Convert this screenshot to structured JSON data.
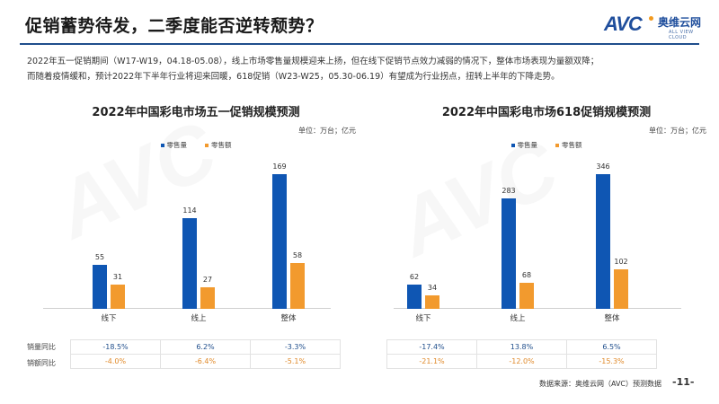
{
  "header": {
    "title": "促销蓄势待发，二季度能否逆转颓势？",
    "logo": {
      "mark": "AVC",
      "name_cn": "奥维云网",
      "name_en": "ALL VIEW CLOUD"
    }
  },
  "intro": {
    "line1": "2022年五一促销期间（W17-W19，04.18-05.08），线上市场零售量规模迎来上扬，但在线下促销节点效力减弱的情况下，整体市场表现为量额双降；",
    "line2": "而随着疫情缓和，预计2022年下半年行业将迎来回暖，618促销（W23-W25，05.30-06.19）有望成为行业拐点，扭转上半年的下降走势。"
  },
  "colors": {
    "volume": "#0f56b3",
    "revenue": "#f29a2e",
    "accent": "#1f4e8c"
  },
  "legend": {
    "volume": "零售量",
    "revenue": "零售额"
  },
  "unit": "单位：万台；亿元",
  "row_labels": {
    "volume_yoy": "销量同比",
    "revenue_yoy": "销额同比"
  },
  "chart_data": [
    {
      "type": "bar",
      "title": "2022年中国彩电市场五一促销规模预测",
      "unit": "单位：万台；亿元",
      "categories": [
        "线下",
        "线上",
        "整体"
      ],
      "series": [
        {
          "name": "零售量",
          "values": [
            55,
            114,
            169
          ]
        },
        {
          "name": "零售额",
          "values": [
            31,
            27,
            58
          ]
        }
      ],
      "yoy": {
        "销量同比": [
          "-18.5%",
          "6.2%",
          "-3.3%"
        ],
        "销额同比": [
          "-4.0%",
          "-6.4%",
          "-5.1%"
        ]
      },
      "legend_position": "top",
      "grid": false
    },
    {
      "type": "bar",
      "title": "2022年中国彩电市场618促销规模预测",
      "unit": "单位：万台；亿元",
      "categories": [
        "线下",
        "线上",
        "整体"
      ],
      "series": [
        {
          "name": "零售量",
          "values": [
            62,
            283,
            346
          ]
        },
        {
          "name": "零售额",
          "values": [
            34,
            68,
            102
          ]
        }
      ],
      "yoy": {
        "销量同比": [
          "-17.4%",
          "13.8%",
          "6.5%"
        ],
        "销额同比": [
          "-21.1%",
          "-12.0%",
          "-15.3%"
        ]
      },
      "legend_position": "top",
      "grid": false
    }
  ],
  "footer": {
    "source": "数据来源：奥维云网（AVC）预测数据",
    "page": "-11-"
  }
}
